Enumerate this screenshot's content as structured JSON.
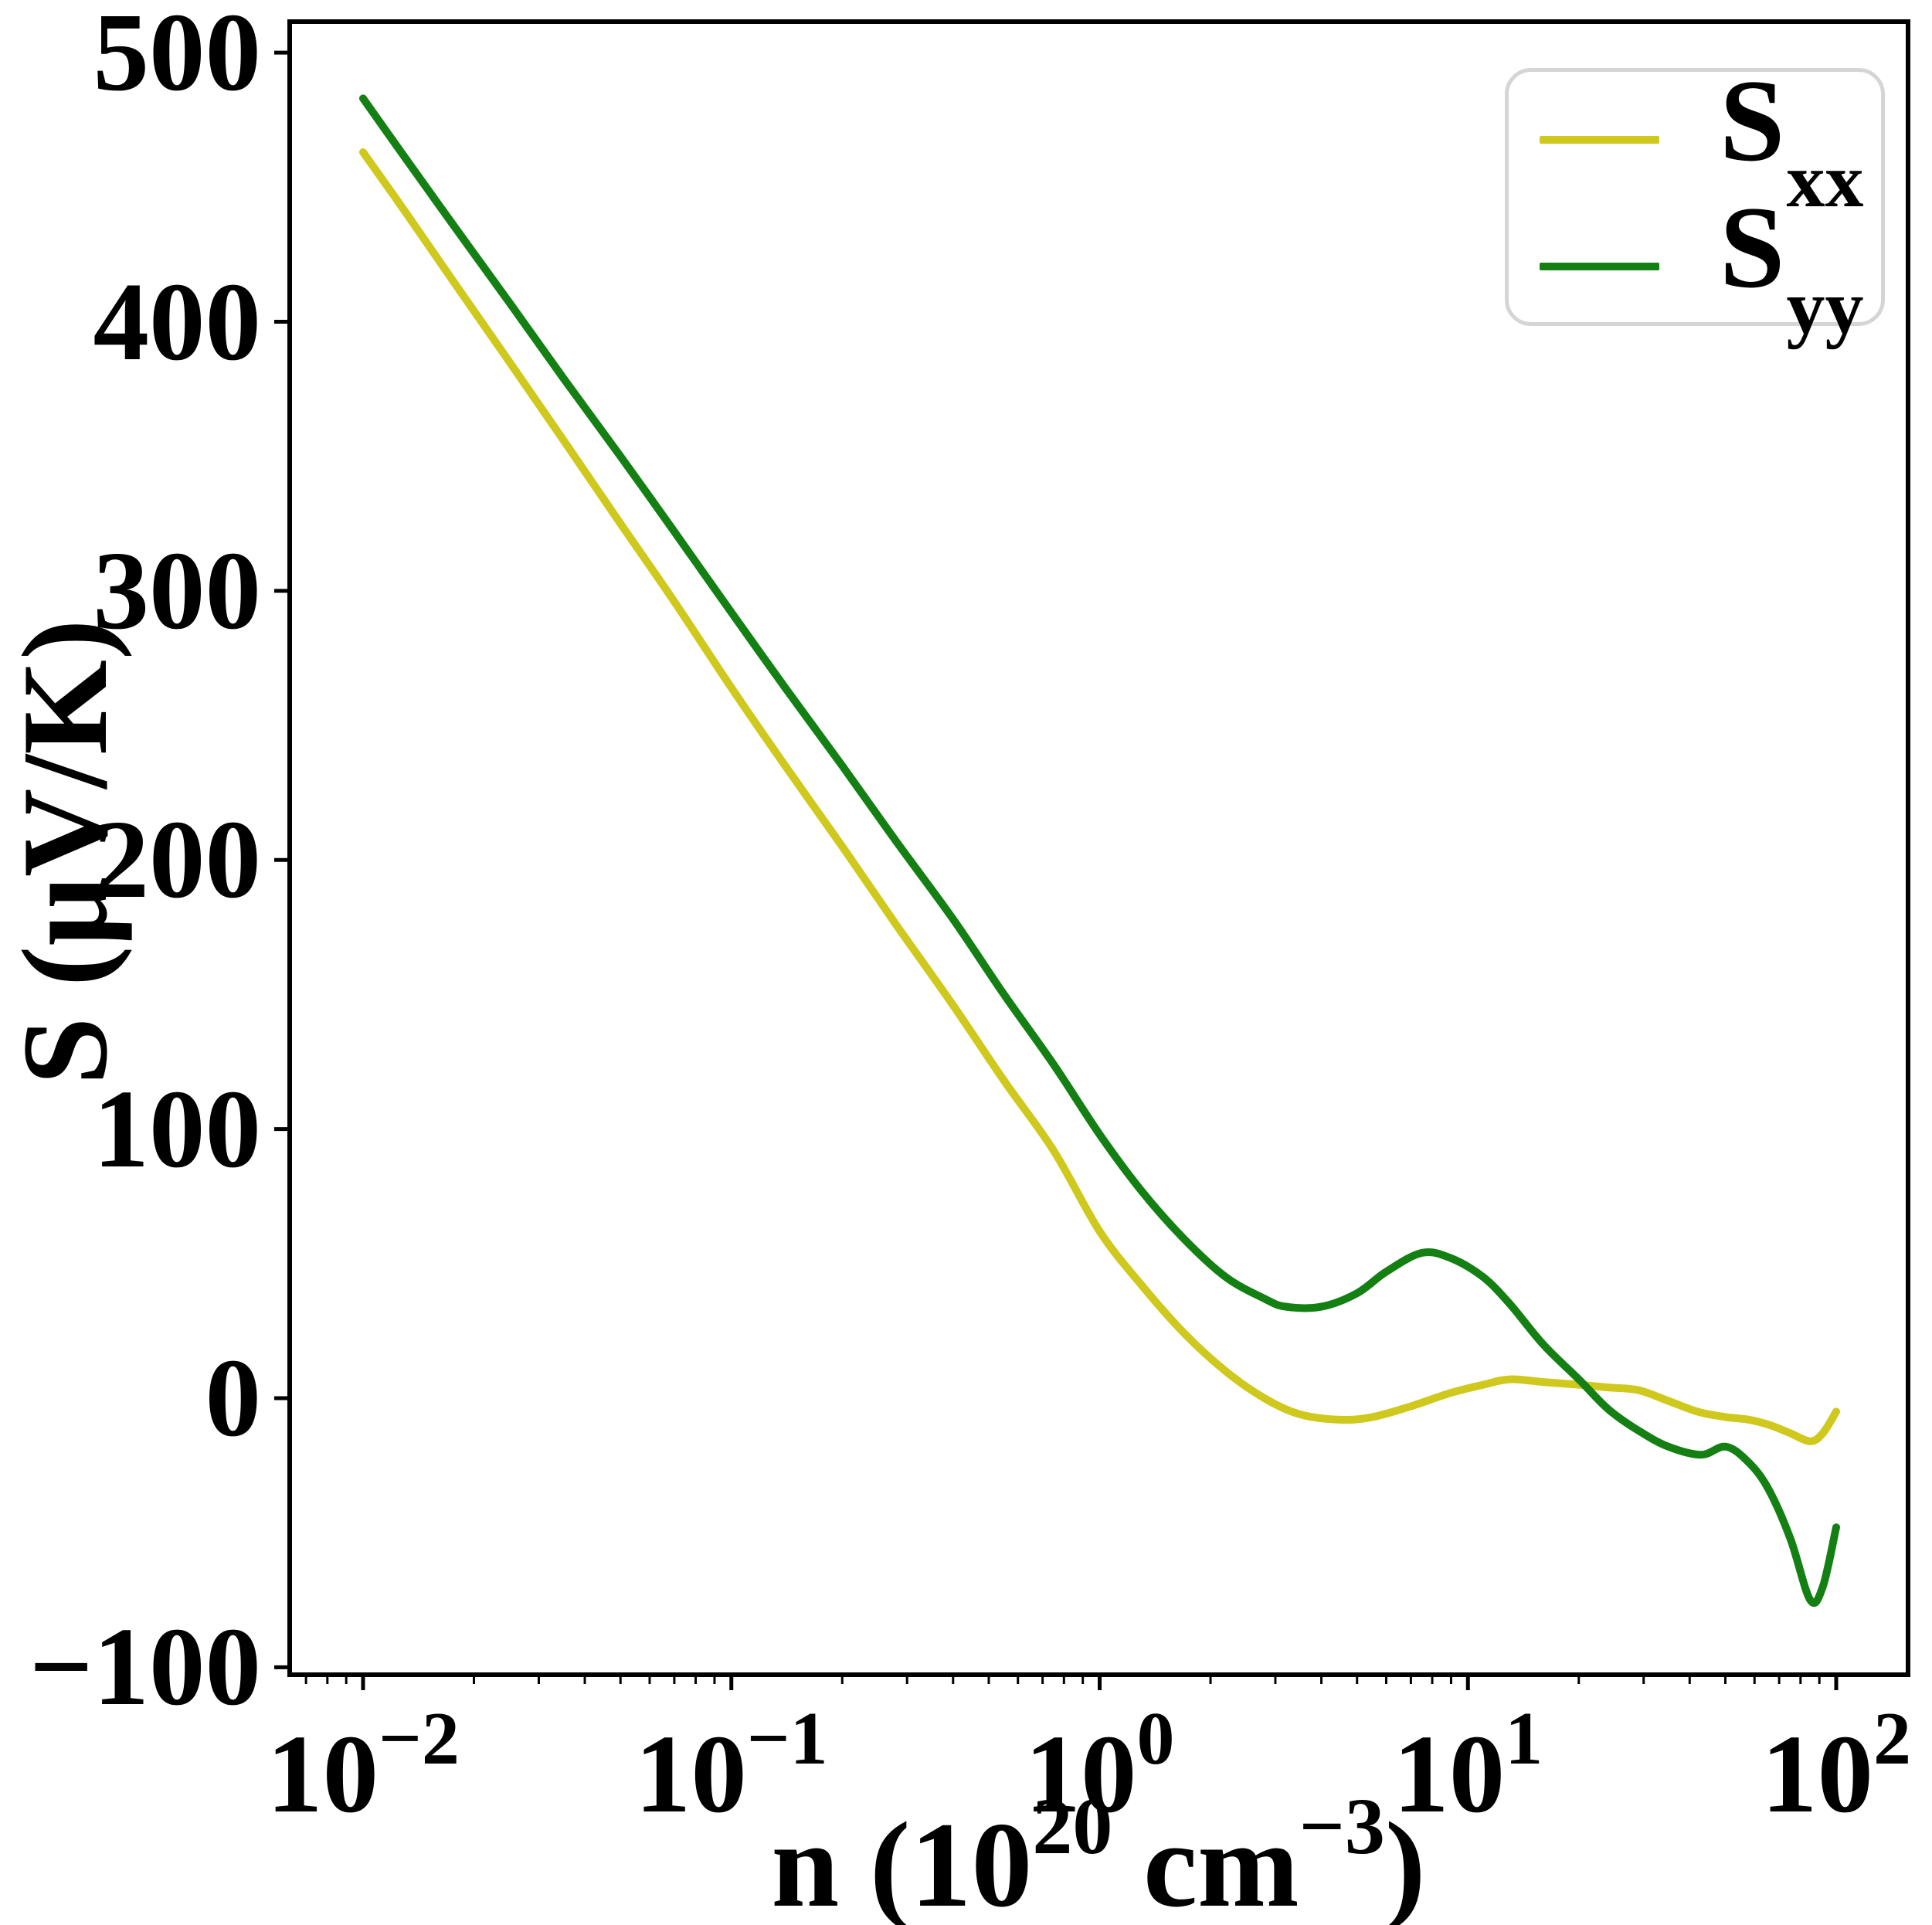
{
  "chart_data": {
    "type": "line",
    "title": "",
    "xlabel_plain": "n (10^20 cm^-3)",
    "ylabel_plain": "S (uV/K)",
    "x_scale": "log",
    "grid": false,
    "legend_position": "upper right",
    "xlim": [
      0.0063,
      158.5
    ],
    "ylim": [
      -103,
      512
    ],
    "x_ticks": [
      0.01,
      0.1,
      1,
      10,
      100
    ],
    "y_ticks": [
      500,
      400,
      300,
      200,
      100,
      0,
      -100
    ],
    "series": [
      {
        "name": "S_xx",
        "color": "#cfc81d",
        "x": [
          0.01,
          0.013,
          0.018,
          0.025,
          0.035,
          0.05,
          0.07,
          0.1,
          0.14,
          0.2,
          0.28,
          0.4,
          0.55,
          0.75,
          1.0,
          1.3,
          1.7,
          2.2,
          2.8,
          3.5,
          4.5,
          5.5,
          7,
          9,
          11,
          13,
          16,
          20,
          24,
          29,
          35,
          42,
          50,
          58,
          66,
          75,
          85,
          92,
          100
        ],
        "y": [
          463,
          441,
          413,
          385,
          356,
          325,
          296,
          264,
          235,
          205,
          176,
          146,
          118,
          92,
          62,
          42,
          24,
          10,
          0,
          -6,
          -8,
          -7,
          -3,
          2,
          5,
          7,
          6,
          5,
          4,
          3,
          -1,
          -5,
          -7,
          -8,
          -10,
          -13,
          -16,
          -13,
          -5
        ]
      },
      {
        "name": "S_yy",
        "color": "#148014",
        "x": [
          0.01,
          0.013,
          0.018,
          0.025,
          0.035,
          0.05,
          0.07,
          0.1,
          0.14,
          0.2,
          0.28,
          0.4,
          0.55,
          0.75,
          1.0,
          1.3,
          1.7,
          2.2,
          2.8,
          3.2,
          4,
          5,
          6,
          7.5,
          9,
          11,
          13,
          16,
          20,
          24,
          29,
          35,
          43,
          50,
          57,
          65,
          75,
          85,
          92,
          100
        ],
        "y": [
          483,
          461,
          434,
          407,
          379,
          350,
          322,
          292,
          264,
          235,
          207,
          178,
          150,
          124,
          98,
          77,
          59,
          45,
          37,
          34,
          34,
          39,
          47,
          54,
          52,
          45,
          35,
          20,
          7,
          -4,
          -12,
          -18,
          -21,
          -18,
          -23,
          -33,
          -52,
          -75,
          -70,
          -48
        ]
      }
    ]
  },
  "axes": {
    "ylabel": "S (μV/K)",
    "y_tick_labels": [
      "500",
      "400",
      "300",
      "200",
      "100",
      "0",
      "−100"
    ],
    "x_tick_labels": [
      {
        "base": "10",
        "exp": "−2"
      },
      {
        "base": "10",
        "exp": "−1"
      },
      {
        "base": "10",
        "exp": "0"
      },
      {
        "base": "10",
        "exp": "1"
      },
      {
        "base": "10",
        "exp": "2"
      }
    ],
    "xlabel_parts": {
      "pre": "n (10",
      "exp1": "20",
      "mid": " cm",
      "exp2": "−3",
      "post": ")"
    }
  },
  "legend": {
    "items": [
      {
        "base": "S",
        "sub": "xx"
      },
      {
        "base": "S",
        "sub": "yy"
      }
    ]
  }
}
